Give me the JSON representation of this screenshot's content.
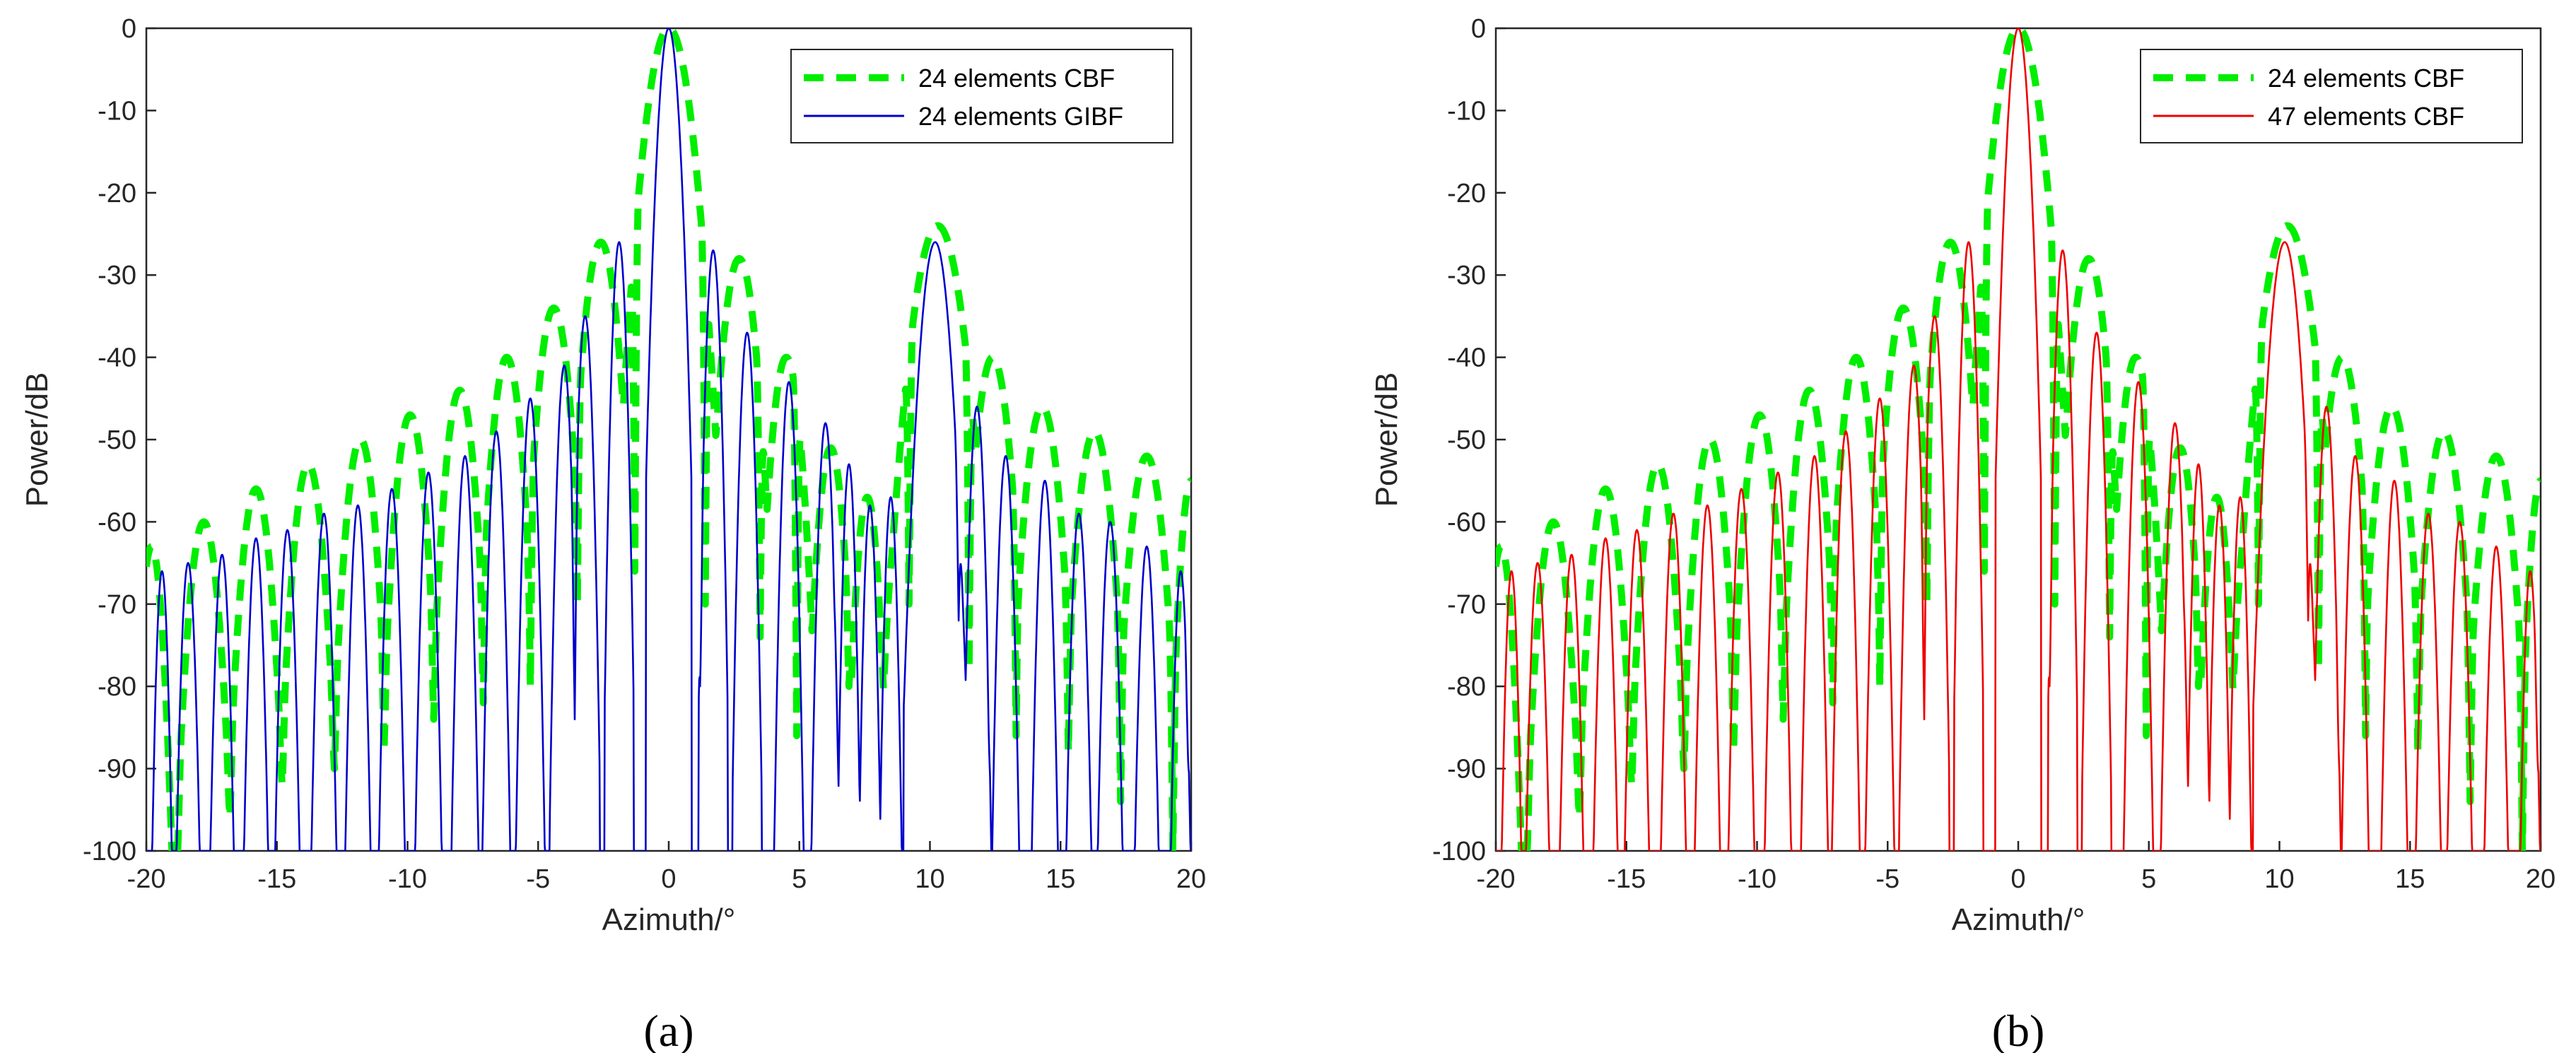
{
  "colors": {
    "cbf24": "#00ee00",
    "gibf": "#0000cc",
    "cbf47": "#ee0000",
    "axis": "#262626"
  },
  "chart_data": [
    {
      "type": "line",
      "caption": "(a)",
      "xlabel": "Azimuth/°",
      "ylabel": "Power/dB",
      "xlim": [
        -20,
        20
      ],
      "ylim": [
        -100,
        0
      ],
      "xticks": [
        -20,
        -15,
        -10,
        -5,
        0,
        5,
        10,
        15,
        20
      ],
      "yticks": [
        0,
        -10,
        -20,
        -30,
        -40,
        -50,
        -60,
        -70,
        -80,
        -90,
        -100
      ],
      "legend_position": "top-right",
      "series": [
        {
          "name": "24 elements CBF",
          "style": "dashed",
          "color": "#00ee00",
          "model": "cbf24"
        },
        {
          "name": "24 elements GIBF",
          "style": "solid",
          "color": "#0000cc",
          "model": "fine"
        }
      ]
    },
    {
      "type": "line",
      "caption": "(b)",
      "xlabel": "Azimuth/°",
      "ylabel": "Power/dB",
      "xlim": [
        -20,
        20
      ],
      "ylim": [
        -100,
        0
      ],
      "xticks": [
        -20,
        -15,
        -10,
        -5,
        0,
        5,
        10,
        15,
        20
      ],
      "yticks": [
        0,
        -10,
        -20,
        -30,
        -40,
        -50,
        -60,
        -70,
        -80,
        -90,
        -100
      ],
      "legend_position": "top-right",
      "series": [
        {
          "name": "24 elements CBF",
          "style": "dashed",
          "color": "#00ee00",
          "model": "cbf24"
        },
        {
          "name": "47 elements CBF",
          "style": "solid",
          "color": "#ee0000",
          "model": "fine"
        }
      ]
    }
  ],
  "series_models": {
    "cbf24": {
      "description": "Array-factor envelope of the 24-element conventional beamformer",
      "lobes": [
        {
          "center": 0,
          "peak": 0,
          "halfwidth": 1.2
        },
        {
          "center": -2.6,
          "peak": -26,
          "halfwidth": 0.9
        },
        {
          "center": 2.7,
          "peak": -28,
          "halfwidth": 0.9
        },
        {
          "center": -4.4,
          "peak": -34,
          "halfwidth": 0.85
        },
        {
          "center": -6.2,
          "peak": -40,
          "halfwidth": 0.8
        },
        {
          "center": -8.0,
          "peak": -44,
          "halfwidth": 0.8
        },
        {
          "center": -9.9,
          "peak": -47,
          "halfwidth": 0.8
        },
        {
          "center": -11.8,
          "peak": -50,
          "halfwidth": 0.8
        },
        {
          "center": -13.8,
          "peak": -53,
          "halfwidth": 0.8
        },
        {
          "center": -15.8,
          "peak": -56,
          "halfwidth": 0.8
        },
        {
          "center": -17.8,
          "peak": -60,
          "halfwidth": 0.8
        },
        {
          "center": -19.8,
          "peak": -63,
          "halfwidth": 0.6
        },
        {
          "center": 4.5,
          "peak": -40,
          "halfwidth": 0.8
        },
        {
          "center": 6.2,
          "peak": -51,
          "halfwidth": 0.7
        },
        {
          "center": 7.6,
          "peak": -57,
          "halfwidth": 0.6
        },
        {
          "center": 8.8,
          "peak": -60,
          "halfwidth": 0.6
        },
        {
          "center": 10.3,
          "peak": -24,
          "halfwidth": 1.3
        },
        {
          "center": 12.4,
          "peak": -40,
          "halfwidth": 0.9
        },
        {
          "center": 14.3,
          "peak": -46,
          "halfwidth": 0.9
        },
        {
          "center": 16.3,
          "peak": -49,
          "halfwidth": 0.9
        },
        {
          "center": 18.3,
          "peak": -52,
          "halfwidth": 0.9
        },
        {
          "center": 20.0,
          "peak": -55,
          "halfwidth": 0.6
        }
      ],
      "nulls": [
        {
          "at": -1.3,
          "depth": -66
        },
        {
          "at": 1.4,
          "depth": -70
        },
        {
          "at": -3.5,
          "depth": -70
        },
        {
          "at": 3.5,
          "depth": -74
        },
        {
          "at": -5.3,
          "depth": -80
        },
        {
          "at": 4.9,
          "depth": -86
        },
        {
          "at": -7.1,
          "depth": -82
        },
        {
          "at": 6.9,
          "depth": -80
        },
        {
          "at": -9.0,
          "depth": -84
        },
        {
          "at": 8.2,
          "depth": -72
        },
        {
          "at": -10.9,
          "depth": -88
        },
        {
          "at": 9.2,
          "depth": -70
        },
        {
          "at": -12.8,
          "depth": -90
        },
        {
          "at": 11.5,
          "depth": -78
        },
        {
          "at": -14.8,
          "depth": -92
        },
        {
          "at": 13.3,
          "depth": -86
        },
        {
          "at": -16.8,
          "depth": -96
        },
        {
          "at": 15.3,
          "depth": -88
        },
        {
          "at": -18.8,
          "depth": -100
        },
        {
          "at": 17.3,
          "depth": -94
        },
        {
          "at": 19.3,
          "depth": -100
        }
      ]
    },
    "fine": {
      "description": "Narrow-beam response (24-element GIBF / 47-element CBF)",
      "lobes": [
        {
          "center": 0,
          "peak": 0,
          "halfwidth": 0.55
        },
        {
          "center": -1.9,
          "peak": -26,
          "halfwidth": 0.35
        },
        {
          "center": 1.7,
          "peak": -27,
          "halfwidth": 0.35
        },
        {
          "center": -3.2,
          "peak": -35,
          "halfwidth": 0.35
        },
        {
          "center": 3.0,
          "peak": -37,
          "halfwidth": 0.35
        },
        {
          "center": -4.0,
          "peak": -41,
          "halfwidth": 0.35
        },
        {
          "center": 4.6,
          "peak": -43,
          "halfwidth": 0.35
        },
        {
          "center": -5.3,
          "peak": -45,
          "halfwidth": 0.35
        },
        {
          "center": 6.0,
          "peak": -48,
          "halfwidth": 0.35
        },
        {
          "center": -6.6,
          "peak": -49,
          "halfwidth": 0.35
        },
        {
          "center": 6.9,
          "peak": -53,
          "halfwidth": 0.3
        },
        {
          "center": -7.8,
          "peak": -52,
          "halfwidth": 0.35
        },
        {
          "center": 7.7,
          "peak": -58,
          "halfwidth": 0.3
        },
        {
          "center": -9.2,
          "peak": -54,
          "halfwidth": 0.35
        },
        {
          "center": 8.5,
          "peak": -57,
          "halfwidth": 0.3
        },
        {
          "center": -10.6,
          "peak": -56,
          "halfwidth": 0.35
        },
        {
          "center": 10.2,
          "peak": -26,
          "halfwidth": 0.75
        },
        {
          "center": -11.9,
          "peak": -58,
          "halfwidth": 0.35
        },
        {
          "center": 11.8,
          "peak": -46,
          "halfwidth": 0.35
        },
        {
          "center": -13.2,
          "peak": -59,
          "halfwidth": 0.35
        },
        {
          "center": 12.9,
          "peak": -52,
          "halfwidth": 0.35
        },
        {
          "center": -14.6,
          "peak": -61,
          "halfwidth": 0.35
        },
        {
          "center": 14.4,
          "peak": -55,
          "halfwidth": 0.35
        },
        {
          "center": -15.8,
          "peak": -62,
          "halfwidth": 0.35
        },
        {
          "center": 15.7,
          "peak": -59,
          "halfwidth": 0.35
        },
        {
          "center": -17.1,
          "peak": -64,
          "halfwidth": 0.35
        },
        {
          "center": 16.9,
          "peak": -60,
          "halfwidth": 0.35
        },
        {
          "center": -18.4,
          "peak": -65,
          "halfwidth": 0.35
        },
        {
          "center": 18.3,
          "peak": -63,
          "halfwidth": 0.35
        },
        {
          "center": -19.4,
          "peak": -66,
          "halfwidth": 0.3
        },
        {
          "center": 19.6,
          "peak": -66,
          "halfwidth": 0.3
        }
      ],
      "nulls": [
        {
          "at": -1.1,
          "depth": -82
        },
        {
          "at": 1.2,
          "depth": -80
        },
        {
          "at": -2.5,
          "depth": -83
        },
        {
          "at": 2.4,
          "depth": -78
        },
        {
          "at": -3.6,
          "depth": -84
        },
        {
          "at": 3.7,
          "depth": -76
        },
        {
          "at": -4.7,
          "depth": -86
        },
        {
          "at": 5.3,
          "depth": -74
        },
        {
          "at": -5.9,
          "depth": -88
        },
        {
          "at": 6.4,
          "depth": -72
        },
        {
          "at": -7.2,
          "depth": -90
        },
        {
          "at": 7.3,
          "depth": -68
        },
        {
          "at": -8.5,
          "depth": -96
        },
        {
          "at": 8.1,
          "depth": -66
        },
        {
          "at": -9.8,
          "depth": -100
        },
        {
          "at": 8.9,
          "depth": -65
        },
        {
          "at": -11.2,
          "depth": -100
        },
        {
          "at": 11.1,
          "depth": -72
        },
        {
          "at": -12.5,
          "depth": -100
        },
        {
          "at": 12.3,
          "depth": -90
        },
        {
          "at": -13.9,
          "depth": -100
        },
        {
          "at": 13.6,
          "depth": -92
        },
        {
          "at": -15.2,
          "depth": -92
        },
        {
          "at": 15.1,
          "depth": -90
        },
        {
          "at": -16.4,
          "depth": -93
        },
        {
          "at": 16.3,
          "depth": -92
        },
        {
          "at": -17.8,
          "depth": -100
        },
        {
          "at": 17.6,
          "depth": -95
        },
        {
          "at": -18.9,
          "depth": -100
        },
        {
          "at": 19.0,
          "depth": -100
        },
        {
          "at": -19.9,
          "depth": -94
        },
        {
          "at": 19.9,
          "depth": -90
        }
      ]
    }
  }
}
